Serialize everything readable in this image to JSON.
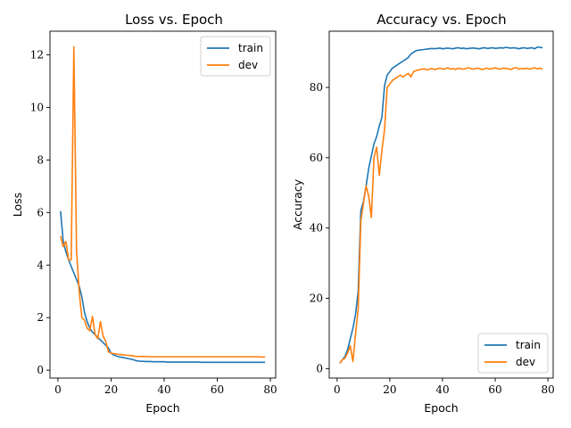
{
  "chart_data": [
    {
      "type": "line",
      "title": "Loss vs. Epoch",
      "xlabel": "Epoch",
      "ylabel": "Loss",
      "xlim": [
        -3,
        82
      ],
      "ylim": [
        -0.3,
        12.9
      ],
      "xticks": [
        0,
        20,
        40,
        60,
        80
      ],
      "yticks": [
        0,
        2,
        4,
        6,
        8,
        10,
        12
      ],
      "legend_position": "upper right",
      "grid": false,
      "series": [
        {
          "name": "train",
          "color": "#1f77b4",
          "x": [
            1,
            2,
            3,
            4,
            5,
            6,
            7,
            8,
            9,
            10,
            11,
            12,
            13,
            14,
            15,
            16,
            17,
            18,
            19,
            20,
            21,
            22,
            23,
            24,
            25,
            26,
            27,
            28,
            29,
            30,
            31,
            32,
            33,
            34,
            35,
            36,
            37,
            38,
            39,
            40,
            41,
            42,
            43,
            44,
            45,
            46,
            47,
            48,
            49,
            50,
            51,
            52,
            53,
            54,
            55,
            56,
            57,
            58,
            59,
            60,
            61,
            62,
            63,
            64,
            65,
            66,
            67,
            68,
            69,
            70,
            71,
            72,
            73,
            74,
            75,
            76,
            77,
            78
          ],
          "y": [
            6.05,
            4.9,
            4.5,
            4.2,
            3.95,
            3.7,
            3.45,
            3.2,
            2.8,
            2.2,
            1.85,
            1.6,
            1.45,
            1.35,
            1.25,
            1.15,
            1.05,
            0.95,
            0.85,
            0.65,
            0.58,
            0.54,
            0.51,
            0.49,
            0.47,
            0.45,
            0.43,
            0.41,
            0.38,
            0.35,
            0.34,
            0.34,
            0.33,
            0.33,
            0.33,
            0.32,
            0.32,
            0.32,
            0.32,
            0.32,
            0.31,
            0.31,
            0.31,
            0.31,
            0.31,
            0.31,
            0.31,
            0.31,
            0.31,
            0.31,
            0.31,
            0.31,
            0.31,
            0.3,
            0.3,
            0.3,
            0.3,
            0.3,
            0.3,
            0.3,
            0.3,
            0.3,
            0.3,
            0.3,
            0.3,
            0.3,
            0.3,
            0.3,
            0.3,
            0.3,
            0.3,
            0.3,
            0.3,
            0.3,
            0.3,
            0.3,
            0.3,
            0.3
          ]
        },
        {
          "name": "dev",
          "color": "#ff7f0e",
          "x": [
            1,
            2,
            3,
            4,
            5,
            6,
            7,
            8,
            9,
            10,
            11,
            12,
            13,
            14,
            15,
            16,
            17,
            18,
            19,
            20,
            21,
            22,
            23,
            24,
            25,
            26,
            27,
            28,
            29,
            30,
            31,
            32,
            33,
            34,
            35,
            36,
            37,
            38,
            39,
            40,
            41,
            42,
            43,
            44,
            45,
            46,
            47,
            48,
            49,
            50,
            51,
            52,
            53,
            54,
            55,
            56,
            57,
            58,
            59,
            60,
            61,
            62,
            63,
            64,
            65,
            66,
            67,
            68,
            69,
            70,
            71,
            72,
            73,
            74,
            75,
            76,
            77,
            78
          ],
          "y": [
            5.1,
            4.7,
            4.9,
            4.2,
            4.2,
            12.3,
            4.6,
            3.0,
            2.0,
            1.9,
            1.6,
            1.5,
            2.05,
            1.35,
            1.2,
            1.85,
            1.3,
            1.1,
            0.7,
            0.65,
            0.63,
            0.62,
            0.6,
            0.59,
            0.58,
            0.57,
            0.56,
            0.55,
            0.53,
            0.52,
            0.52,
            0.52,
            0.52,
            0.51,
            0.51,
            0.51,
            0.51,
            0.51,
            0.51,
            0.51,
            0.51,
            0.51,
            0.51,
            0.51,
            0.51,
            0.51,
            0.51,
            0.51,
            0.51,
            0.51,
            0.51,
            0.51,
            0.51,
            0.51,
            0.51,
            0.51,
            0.51,
            0.51,
            0.51,
            0.51,
            0.51,
            0.51,
            0.51,
            0.51,
            0.51,
            0.51,
            0.51,
            0.51,
            0.51,
            0.51,
            0.51,
            0.51,
            0.51,
            0.51,
            0.51,
            0.51,
            0.5,
            0.5
          ]
        }
      ]
    },
    {
      "type": "line",
      "title": "Accuracy vs. Epoch",
      "xlabel": "Epoch",
      "ylabel": "Accuracy",
      "xlim": [
        -3,
        82
      ],
      "ylim": [
        -2.7,
        96
      ],
      "xticks": [
        0,
        20,
        40,
        60,
        80
      ],
      "yticks": [
        0,
        20,
        40,
        60,
        80
      ],
      "legend_position": "lower right",
      "grid": false,
      "series": [
        {
          "name": "train",
          "color": "#1f77b4",
          "x": [
            1,
            2,
            3,
            4,
            5,
            6,
            7,
            8,
            9,
            10,
            11,
            12,
            13,
            14,
            15,
            16,
            17,
            18,
            19,
            20,
            21,
            22,
            23,
            24,
            25,
            26,
            27,
            28,
            29,
            30,
            31,
            32,
            33,
            34,
            35,
            36,
            37,
            38,
            39,
            40,
            41,
            42,
            43,
            44,
            45,
            46,
            47,
            48,
            49,
            50,
            51,
            52,
            53,
            54,
            55,
            56,
            57,
            58,
            59,
            60,
            61,
            62,
            63,
            64,
            65,
            66,
            67,
            68,
            69,
            70,
            71,
            72,
            73,
            74,
            75,
            76,
            77,
            78
          ],
          "y": [
            1.5,
            2.5,
            3.5,
            5.5,
            8.5,
            11.5,
            15.5,
            22.0,
            45.0,
            47.5,
            52.0,
            57.0,
            60.5,
            64.0,
            66.0,
            69.0,
            71.5,
            80.5,
            83.5,
            84.5,
            85.5,
            86.0,
            86.5,
            87.0,
            87.5,
            88.0,
            88.5,
            89.5,
            90.0,
            90.5,
            90.6,
            90.7,
            90.8,
            90.9,
            91.0,
            91.1,
            91.0,
            91.1,
            91.2,
            91.0,
            91.1,
            91.2,
            91.1,
            91.0,
            91.2,
            91.3,
            91.1,
            91.2,
            91.0,
            91.1,
            91.2,
            91.2,
            91.1,
            91.0,
            91.2,
            91.3,
            91.1,
            91.2,
            91.3,
            91.1,
            91.2,
            91.3,
            91.2,
            91.4,
            91.3,
            91.2,
            91.3,
            91.2,
            91.0,
            91.2,
            91.3,
            91.1,
            91.2,
            91.3,
            91.0,
            91.5,
            91.4,
            91.3
          ]
        },
        {
          "name": "dev",
          "color": "#ff7f0e",
          "x": [
            1,
            2,
            3,
            4,
            5,
            6,
            7,
            8,
            9,
            10,
            11,
            12,
            13,
            14,
            15,
            16,
            17,
            18,
            19,
            20,
            21,
            22,
            23,
            24,
            25,
            26,
            27,
            28,
            29,
            30,
            31,
            32,
            33,
            34,
            35,
            36,
            37,
            38,
            39,
            40,
            41,
            42,
            43,
            44,
            45,
            46,
            47,
            48,
            49,
            50,
            51,
            52,
            53,
            54,
            55,
            56,
            57,
            58,
            59,
            60,
            61,
            62,
            63,
            64,
            65,
            66,
            67,
            68,
            69,
            70,
            71,
            72,
            73,
            74,
            75,
            76,
            77,
            78
          ],
          "y": [
            1.5,
            2.5,
            3.0,
            4.5,
            6.5,
            2.0,
            10.0,
            17.0,
            42.0,
            47.0,
            52.0,
            49.0,
            43.0,
            60.0,
            63.0,
            55.0,
            62.0,
            68.0,
            80.0,
            81.0,
            82.0,
            82.5,
            83.0,
            83.5,
            83.0,
            83.5,
            84.0,
            83.0,
            84.5,
            84.8,
            85.0,
            85.2,
            85.3,
            85.0,
            85.2,
            85.4,
            85.1,
            85.3,
            85.5,
            85.2,
            85.3,
            85.6,
            85.2,
            85.4,
            85.1,
            85.5,
            85.3,
            85.2,
            85.4,
            85.6,
            85.3,
            85.2,
            85.5,
            85.4,
            85.1,
            85.3,
            85.5,
            85.2,
            85.4,
            85.6,
            85.3,
            85.2,
            85.5,
            85.4,
            85.3,
            85.1,
            85.5,
            85.6,
            85.2,
            85.4,
            85.3,
            85.5,
            85.2,
            85.4,
            85.6,
            85.3,
            85.5,
            85.2
          ]
        }
      ]
    }
  ]
}
